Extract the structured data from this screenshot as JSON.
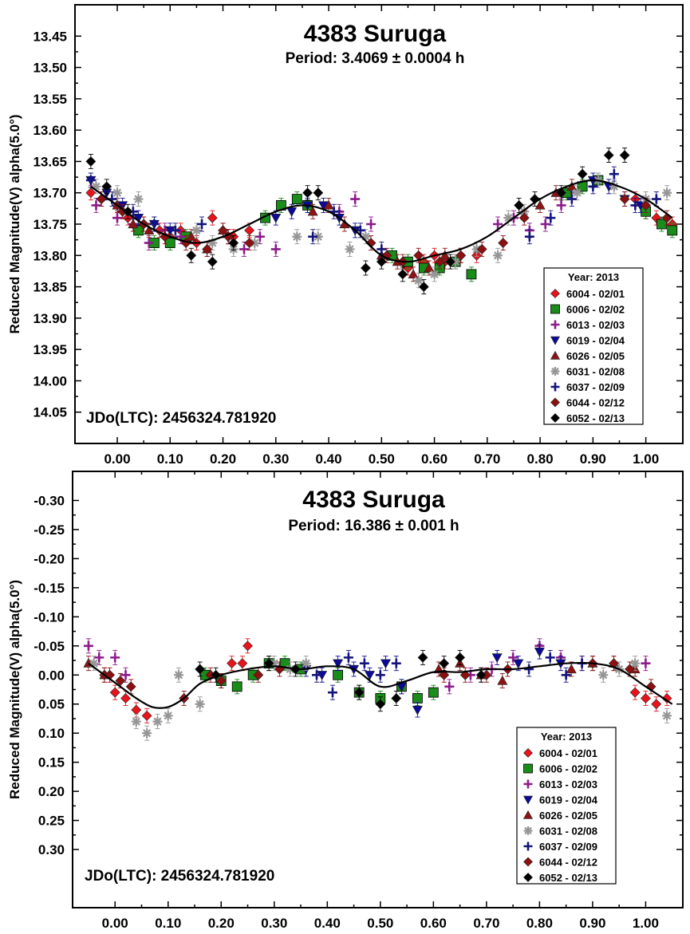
{
  "chart_data": [
    {
      "type": "scatter",
      "title": "4383 Suruga",
      "subtitle": "Period: 3.4069 ± 0.0004 h",
      "ylabel": "Reduced Magnitude(V) alpha(5.0°)",
      "xlabel": "",
      "annotation": "JDo(LTC): 2456324.781920",
      "xlim": [
        -0.08,
        1.07
      ],
      "ylim": [
        13.4,
        14.1
      ],
      "y_inverted": true,
      "xticks": [
        "0.00",
        "0.10",
        "0.20",
        "0.30",
        "0.40",
        "0.50",
        "0.60",
        "0.70",
        "0.80",
        "0.90",
        "1.00"
      ],
      "yticks": [
        "13.45",
        "13.50",
        "13.55",
        "13.60",
        "13.65",
        "13.70",
        "13.75",
        "13.80",
        "13.85",
        "13.90",
        "13.95",
        "14.00",
        "14.05"
      ],
      "legend": {
        "title": "Year: 2013",
        "placement": "bottom-right",
        "entries": [
          "6004 - 02/01",
          "6006 - 02/02",
          "6013 - 02/03",
          "6019 - 02/04",
          "6026 - 02/05",
          "6031 - 02/08",
          "6037 - 02/09",
          "6044 - 02/12",
          "6052 - 02/13"
        ]
      },
      "fit_curve": {
        "x": [
          -0.05,
          0.0,
          0.05,
          0.1,
          0.15,
          0.2,
          0.25,
          0.3,
          0.35,
          0.4,
          0.45,
          0.5,
          0.55,
          0.6,
          0.65,
          0.7,
          0.75,
          0.8,
          0.85,
          0.9,
          0.95,
          1.0,
          1.05
        ],
        "y": [
          13.69,
          13.72,
          13.75,
          13.77,
          13.78,
          13.77,
          13.75,
          13.73,
          13.72,
          13.73,
          13.76,
          13.8,
          13.81,
          13.8,
          13.79,
          13.77,
          13.74,
          13.71,
          13.69,
          13.68,
          13.69,
          13.71,
          13.74
        ]
      },
      "series": [
        {
          "name": "6004 - 02/01",
          "color": "#e8141c",
          "marker": "diamond",
          "x": [
            -0.05,
            -0.03,
            0.0,
            0.02,
            0.05,
            0.08,
            0.1,
            0.12,
            0.15,
            0.18,
            0.2,
            0.22,
            0.25,
            0.55,
            0.58,
            0.6,
            0.62,
            0.65,
            0.68,
            0.98,
            1.0,
            1.02,
            1.05
          ],
          "y": [
            13.7,
            13.71,
            13.72,
            13.74,
            13.75,
            13.76,
            13.77,
            13.76,
            13.78,
            13.74,
            13.76,
            13.77,
            13.76,
            13.82,
            13.81,
            13.8,
            13.81,
            13.8,
            13.8,
            13.71,
            13.73,
            13.74,
            13.75
          ]
        },
        {
          "name": "6006 - 02/02",
          "color": "#1a8c1a",
          "marker": "square",
          "x": [
            0.04,
            0.07,
            0.1,
            0.13,
            0.28,
            0.31,
            0.34,
            0.36,
            0.52,
            0.55,
            0.58,
            0.61,
            0.64,
            0.67,
            0.85,
            0.88,
            0.91,
            1.0,
            1.03,
            1.05
          ],
          "y": [
            13.76,
            13.78,
            13.78,
            13.77,
            13.74,
            13.72,
            13.71,
            13.72,
            13.8,
            13.81,
            13.82,
            13.82,
            13.81,
            13.83,
            13.7,
            13.69,
            13.68,
            13.73,
            13.75,
            13.76
          ]
        },
        {
          "name": "6013 - 02/03",
          "color": "#8c1a8c",
          "marker": "plus",
          "x": [
            -0.04,
            0.0,
            0.03,
            0.06,
            0.09,
            0.12,
            0.24,
            0.27,
            0.3,
            0.42,
            0.45,
            0.48,
            0.72,
            0.75,
            0.78,
            0.81,
            0.84
          ],
          "y": [
            13.72,
            13.74,
            13.75,
            13.78,
            13.76,
            13.77,
            13.79,
            13.77,
            13.79,
            13.73,
            13.71,
            13.75,
            13.75,
            13.74,
            13.76,
            13.75,
            13.72
          ]
        },
        {
          "name": "6019 - 02/04",
          "color": "#0a0a96",
          "marker": "triangle-down",
          "x": [
            -0.05,
            -0.02,
            0.01,
            0.04,
            0.07,
            0.1,
            0.3,
            0.33,
            0.36,
            0.39,
            0.42,
            0.45,
            0.9,
            0.93,
            0.96,
            0.99
          ],
          "y": [
            13.68,
            13.7,
            13.72,
            13.74,
            13.75,
            13.76,
            13.74,
            13.73,
            13.72,
            13.72,
            13.74,
            13.76,
            13.68,
            13.69,
            13.71,
            13.72
          ]
        },
        {
          "name": "6026 - 02/05",
          "color": "#8c1414",
          "marker": "triangle-up",
          "x": [
            0.0,
            0.03,
            0.06,
            0.14,
            0.17,
            0.2,
            0.37,
            0.4,
            0.43,
            0.5,
            0.53,
            0.56,
            0.59,
            0.62,
            0.8,
            0.83,
            0.86
          ],
          "y": [
            13.72,
            13.75,
            13.76,
            13.77,
            13.79,
            13.76,
            13.73,
            13.72,
            13.75,
            13.8,
            13.81,
            13.83,
            13.82,
            13.8,
            13.72,
            13.7,
            13.69
          ]
        },
        {
          "name": "6031 - 02/08",
          "color": "#969696",
          "marker": "asterisk",
          "x": [
            -0.04,
            0.0,
            0.04,
            0.15,
            0.18,
            0.22,
            0.26,
            0.34,
            0.38,
            0.44,
            0.47,
            0.57,
            0.6,
            0.64,
            0.68,
            0.72,
            0.74,
            0.77,
            0.87,
            0.91,
            0.94,
            1.0,
            1.04
          ],
          "y": [
            13.69,
            13.7,
            13.71,
            13.76,
            13.78,
            13.79,
            13.78,
            13.77,
            13.77,
            13.79,
            13.77,
            13.84,
            13.83,
            13.81,
            13.79,
            13.8,
            13.74,
            13.73,
            13.7,
            13.68,
            13.69,
            13.71,
            13.7
          ]
        },
        {
          "name": "6037 - 02/09",
          "color": "#14147d",
          "marker": "plus",
          "x": [
            -0.05,
            -0.01,
            0.03,
            0.07,
            0.11,
            0.16,
            0.21,
            0.37,
            0.41,
            0.46,
            0.5,
            0.78,
            0.82,
            0.86,
            0.9,
            0.94,
            0.98,
            1.02
          ],
          "y": [
            13.68,
            13.71,
            13.73,
            13.75,
            13.76,
            13.75,
            13.77,
            13.77,
            13.73,
            13.76,
            13.79,
            13.77,
            13.74,
            13.71,
            13.69,
            13.67,
            13.72,
            13.71
          ]
        },
        {
          "name": "6044 - 02/12",
          "color": "#8c1010",
          "marker": "diamond",
          "x": [
            -0.03,
            0.01,
            0.05,
            0.09,
            0.13,
            0.17,
            0.21,
            0.25,
            0.48,
            0.51,
            0.54,
            0.57,
            0.61,
            0.65,
            0.69,
            0.73,
            0.77,
            0.96,
            1.0,
            1.04
          ],
          "y": [
            13.71,
            13.73,
            13.75,
            13.77,
            13.78,
            13.79,
            13.77,
            13.78,
            13.78,
            13.8,
            13.81,
            13.8,
            13.81,
            13.8,
            13.79,
            13.78,
            13.74,
            13.71,
            13.72,
            13.74
          ]
        },
        {
          "name": "6052 - 02/13",
          "color": "#000000",
          "marker": "diamond",
          "x": [
            -0.05,
            -0.02,
            0.02,
            0.14,
            0.18,
            0.22,
            0.36,
            0.38,
            0.47,
            0.5,
            0.54,
            0.58,
            0.63,
            0.76,
            0.79,
            0.84,
            0.88,
            0.93,
            0.96
          ],
          "y": [
            13.65,
            13.69,
            13.73,
            13.8,
            13.81,
            13.78,
            13.7,
            13.7,
            13.82,
            13.81,
            13.83,
            13.85,
            13.81,
            13.72,
            13.71,
            13.7,
            13.67,
            13.64,
            13.64
          ]
        }
      ]
    },
    {
      "type": "scatter",
      "title": "4383 Suruga",
      "subtitle": "Period: 16.386 ± 0.001 h",
      "ylabel": "Reduced Magnitude(V) alpha(5.0°)",
      "xlabel": "",
      "annotation": "JDo(LTC): 2456324.781920",
      "xlim": [
        -0.08,
        1.07
      ],
      "ylim": [
        -0.35,
        0.4
      ],
      "y_inverted": true,
      "xticks": [
        "0.00",
        "0.10",
        "0.20",
        "0.30",
        "0.40",
        "0.50",
        "0.60",
        "0.70",
        "0.80",
        "0.90",
        "1.00"
      ],
      "yticks": [
        "-0.30",
        "-0.25",
        "-0.20",
        "-0.15",
        "-0.10",
        "-0.05",
        "0.00",
        "0.05",
        "0.10",
        "0.15",
        "0.20",
        "0.25",
        "0.30"
      ],
      "legend": {
        "title": "Year: 2013",
        "placement": "bottom-right",
        "entries": [
          "6004 - 02/01",
          "6006 - 02/02",
          "6013 - 02/03",
          "6019 - 02/04",
          "6026 - 02/05",
          "6031 - 02/08",
          "6037 - 02/09",
          "6044 - 02/12",
          "6052 - 02/13"
        ]
      },
      "fit_curve": {
        "x": [
          -0.05,
          -0.02,
          0.01,
          0.04,
          0.07,
          0.1,
          0.13,
          0.16,
          0.2,
          0.25,
          0.3,
          0.35,
          0.4,
          0.45,
          0.5,
          0.55,
          0.6,
          0.65,
          0.7,
          0.75,
          0.8,
          0.85,
          0.9,
          0.95,
          1.0,
          1.05
        ],
        "y": [
          -0.02,
          0.0,
          0.02,
          0.04,
          0.055,
          0.055,
          0.04,
          0.015,
          0.0,
          -0.01,
          -0.015,
          -0.01,
          -0.015,
          -0.01,
          0.02,
          0.01,
          -0.005,
          -0.005,
          -0.01,
          -0.01,
          -0.015,
          -0.02,
          -0.02,
          -0.01,
          0.02,
          0.05
        ]
      },
      "series": [
        {
          "name": "6004 - 02/01",
          "color": "#e8141c",
          "marker": "diamond",
          "x": [
            -0.02,
            0.0,
            0.02,
            0.04,
            0.06,
            0.2,
            0.22,
            0.24,
            0.25,
            0.98,
            1.0,
            1.02,
            1.04
          ],
          "y": [
            0.0,
            0.03,
            0.04,
            0.06,
            0.07,
            0.01,
            -0.02,
            -0.02,
            -0.05,
            0.03,
            0.04,
            0.05,
            0.04
          ]
        },
        {
          "name": "6006 - 02/02",
          "color": "#1a8c1a",
          "marker": "square",
          "x": [
            0.17,
            0.2,
            0.23,
            0.26,
            0.29,
            0.32,
            0.35,
            0.42,
            0.46,
            0.5,
            0.54,
            0.57,
            0.6
          ],
          "y": [
            0.0,
            0.01,
            0.02,
            0.0,
            -0.02,
            -0.02,
            -0.01,
            0.0,
            0.03,
            0.04,
            0.02,
            0.04,
            0.03
          ]
        },
        {
          "name": "6013 - 02/03",
          "color": "#8c1a8c",
          "marker": "plus",
          "x": [
            -0.05,
            -0.03,
            0.0,
            0.02,
            0.63,
            0.67,
            0.71,
            0.75,
            0.8,
            0.84,
            0.88,
            1.0
          ],
          "y": [
            -0.05,
            -0.03,
            -0.03,
            0.0,
            0.02,
            0.0,
            -0.01,
            -0.03,
            -0.05,
            -0.03,
            -0.02,
            -0.02
          ]
        },
        {
          "name": "6019 - 02/04",
          "color": "#0a0a96",
          "marker": "triangle-down",
          "x": [
            0.36,
            0.39,
            0.42,
            0.45,
            0.48,
            0.51,
            0.54,
            0.57,
            0.72,
            0.76,
            0.8,
            0.84
          ],
          "y": [
            -0.01,
            0.0,
            -0.02,
            -0.01,
            0.0,
            -0.02,
            0.02,
            0.06,
            -0.03,
            -0.02,
            -0.04,
            -0.02
          ]
        },
        {
          "name": "6026 - 02/05",
          "color": "#8c1414",
          "marker": "triangle-up",
          "x": [
            -0.05,
            -0.02,
            0.61,
            0.65,
            0.69,
            0.73,
            0.86,
            0.9,
            0.94,
            0.98
          ],
          "y": [
            -0.02,
            0.0,
            -0.01,
            -0.02,
            0.0,
            0.01,
            -0.01,
            -0.02,
            -0.02,
            -0.01
          ]
        },
        {
          "name": "6031 - 02/08",
          "color": "#969696",
          "marker": "asterisk",
          "x": [
            -0.04,
            0.04,
            0.06,
            0.08,
            0.1,
            0.12,
            0.16,
            0.3,
            0.33,
            0.36,
            0.92,
            0.95,
            0.98,
            1.04
          ],
          "y": [
            -0.02,
            0.08,
            0.1,
            0.08,
            0.07,
            0.0,
            0.05,
            -0.02,
            -0.01,
            -0.02,
            0.0,
            -0.01,
            -0.02,
            0.07
          ]
        },
        {
          "name": "6037 - 02/09",
          "color": "#14147d",
          "marker": "plus",
          "x": [
            0.38,
            0.41,
            0.44,
            0.47,
            0.5,
            0.53,
            0.78,
            0.82,
            0.85,
            0.88
          ],
          "y": [
            0.0,
            0.03,
            -0.03,
            -0.02,
            0.0,
            -0.02,
            -0.01,
            -0.03,
            0.0,
            -0.02
          ]
        },
        {
          "name": "6044 - 02/12",
          "color": "#8c1010",
          "marker": "diamond",
          "x": [
            -0.01,
            0.01,
            0.03,
            0.13,
            0.18,
            0.2,
            0.27,
            0.31,
            0.62,
            0.66,
            0.7,
            0.74,
            0.9,
            0.94,
            0.97,
            1.01
          ],
          "y": [
            0.0,
            0.01,
            0.02,
            0.04,
            0.0,
            0.01,
            0.0,
            -0.01,
            0.0,
            0.0,
            0.0,
            -0.01,
            -0.02,
            -0.02,
            -0.01,
            0.02
          ]
        },
        {
          "name": "6052 - 02/13",
          "color": "#000000",
          "marker": "diamond",
          "x": [
            0.16,
            0.19,
            0.29,
            0.34,
            0.46,
            0.5,
            0.53,
            0.58,
            0.62,
            0.65,
            0.69
          ],
          "y": [
            -0.01,
            0.0,
            -0.02,
            -0.01,
            0.03,
            0.05,
            0.04,
            -0.03,
            -0.02,
            -0.03,
            0.0
          ]
        }
      ]
    }
  ]
}
